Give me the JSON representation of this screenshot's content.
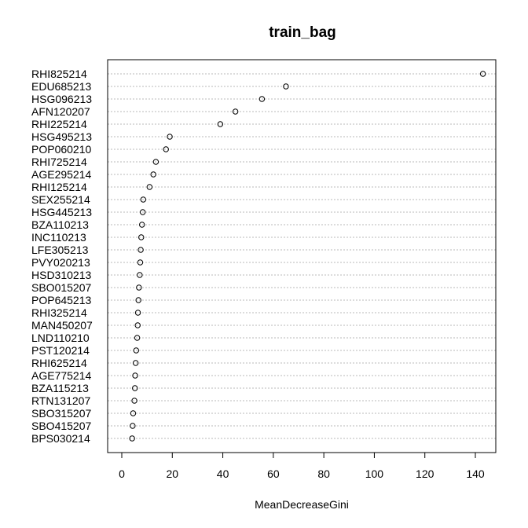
{
  "chart_data": {
    "type": "scatter",
    "title": "train_bag",
    "xlabel": "MeanDecreaseGini",
    "ylabel": "",
    "xlim": [
      -5,
      148
    ],
    "x_ticks": [
      0,
      20,
      40,
      60,
      80,
      100,
      120,
      140
    ],
    "grid": "dotted horizontal guide lines",
    "categories": [
      "RHI825214",
      "EDU685213",
      "HSG096213",
      "AFN120207",
      "RHI225214",
      "HSG495213",
      "POP060210",
      "RHI725214",
      "AGE295214",
      "RHI125214",
      "SEX255214",
      "HSG445213",
      "BZA110213",
      "INC110213",
      "LFE305213",
      "PVY020213",
      "HSD310213",
      "SBO015207",
      "POP645213",
      "RHI325214",
      "MAN450207",
      "LND110210",
      "PST120214",
      "RHI625214",
      "AGE775214",
      "BZA115213",
      "RTN131207",
      "SBO315207",
      "SBO415207",
      "BPS030214"
    ],
    "values": [
      143,
      65,
      55.5,
      45,
      39,
      19,
      17.5,
      13.5,
      12.5,
      11,
      8.5,
      8.3,
      8,
      7.7,
      7.5,
      7.3,
      7.1,
      6.8,
      6.6,
      6.4,
      6.3,
      6.1,
      5.7,
      5.5,
      5.3,
      5.2,
      5,
      4.5,
      4.3,
      4.1
    ]
  }
}
